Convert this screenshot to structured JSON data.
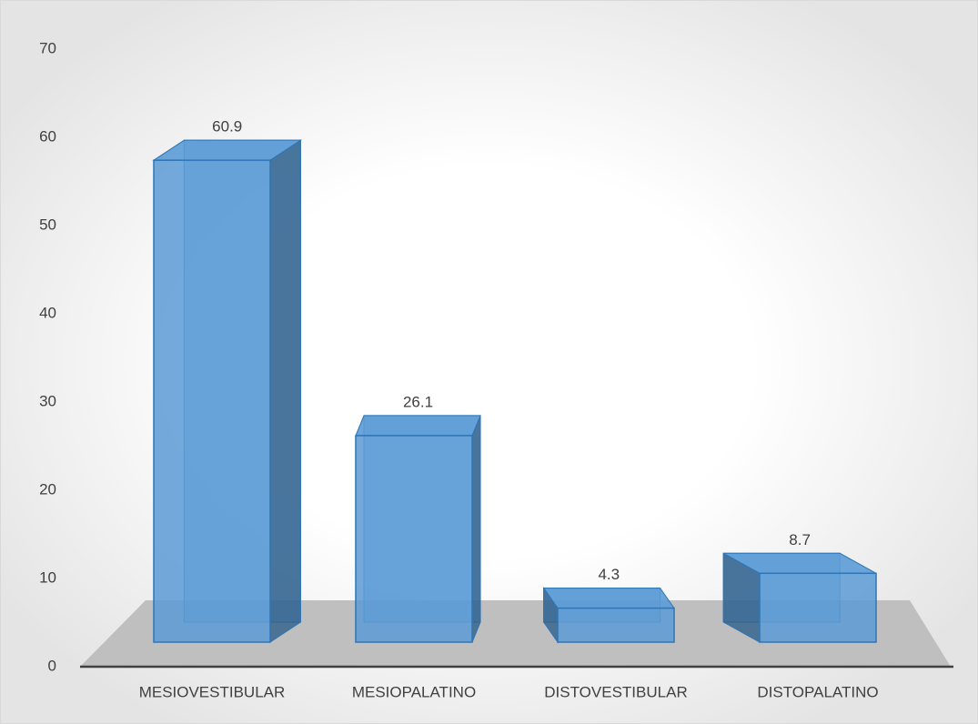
{
  "chart_data": {
    "type": "bar3d",
    "categories": [
      "MESIOVESTIBULAR",
      "MESIOPALATINO",
      "DISTOVESTIBULAR",
      "DISTOPALATINO"
    ],
    "values": [
      60.9,
      26.1,
      4.3,
      8.7
    ],
    "color": "#5b9bd5",
    "ylim": [
      0,
      70
    ],
    "yticks": [
      0,
      10,
      20,
      30,
      40,
      50,
      60,
      70
    ],
    "grid": false
  }
}
